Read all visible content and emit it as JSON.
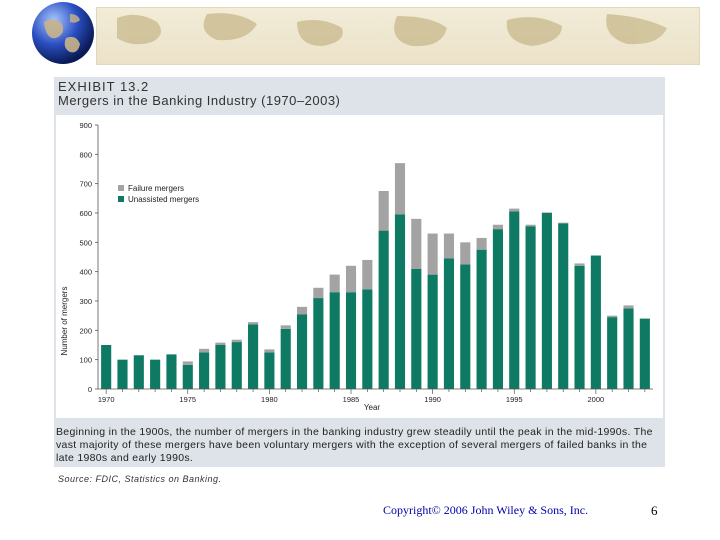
{
  "slide": {
    "exhibit_label": "EXHIBIT 13.2",
    "caption": "Beginning in the 1900s, the number of mergers in the banking industry grew steadily until the peak in the mid-1990s. The vast majority of these mergers have been voluntary mergers with the exception of several mergers of failed banks in the late 1980s and early 1990s.",
    "source": "Source: FDIC, Statistics on Banking.",
    "copyright": "Copyright© 2006 John Wiley & Sons, Inc.",
    "page_number": "6"
  },
  "colors": {
    "unassisted": "#0e7a63",
    "failure": "#a3a3a3",
    "panel": "#dde3e8"
  },
  "icons": {
    "globe": "globe-icon",
    "map": "world-map-banner"
  },
  "chart_data": {
    "type": "bar",
    "stacked": true,
    "title": "Mergers in the Banking Industry (1970–2003)",
    "xlabel": "Year",
    "ylabel": "Number of mergers",
    "ylim": [
      0,
      900
    ],
    "yticks": [
      "0",
      "100",
      "200",
      "300",
      "400",
      "500",
      "600",
      "700",
      "800",
      "900"
    ],
    "xtick_labels": [
      "1970",
      "1975",
      "1980",
      "1985",
      "1990",
      "1995",
      "2000"
    ],
    "grid": false,
    "legend_position": "top-left",
    "categories": [
      "1970",
      "1971",
      "1972",
      "1973",
      "1974",
      "1975",
      "1976",
      "1977",
      "1978",
      "1979",
      "1980",
      "1981",
      "1982",
      "1983",
      "1984",
      "1985",
      "1986",
      "1987",
      "1988",
      "1989",
      "1990",
      "1991",
      "1992",
      "1993",
      "1994",
      "1995",
      "1996",
      "1997",
      "1998",
      "1999",
      "2000",
      "2001",
      "2002",
      "2003"
    ],
    "series": [
      {
        "name": "Unassisted mergers",
        "values": [
          150,
          100,
          115,
          100,
          118,
          82,
          125,
          150,
          160,
          220,
          125,
          205,
          255,
          310,
          330,
          330,
          340,
          540,
          595,
          410,
          390,
          445,
          425,
          475,
          545,
          605,
          555,
          600,
          565,
          420,
          455,
          245,
          275,
          240
        ]
      },
      {
        "name": "Failure mergers",
        "values": [
          0,
          0,
          0,
          0,
          0,
          12,
          12,
          8,
          8,
          8,
          10,
          12,
          25,
          35,
          60,
          90,
          100,
          135,
          175,
          170,
          140,
          85,
          75,
          40,
          15,
          10,
          5,
          2,
          2,
          8,
          0,
          5,
          10,
          0
        ]
      }
    ]
  }
}
